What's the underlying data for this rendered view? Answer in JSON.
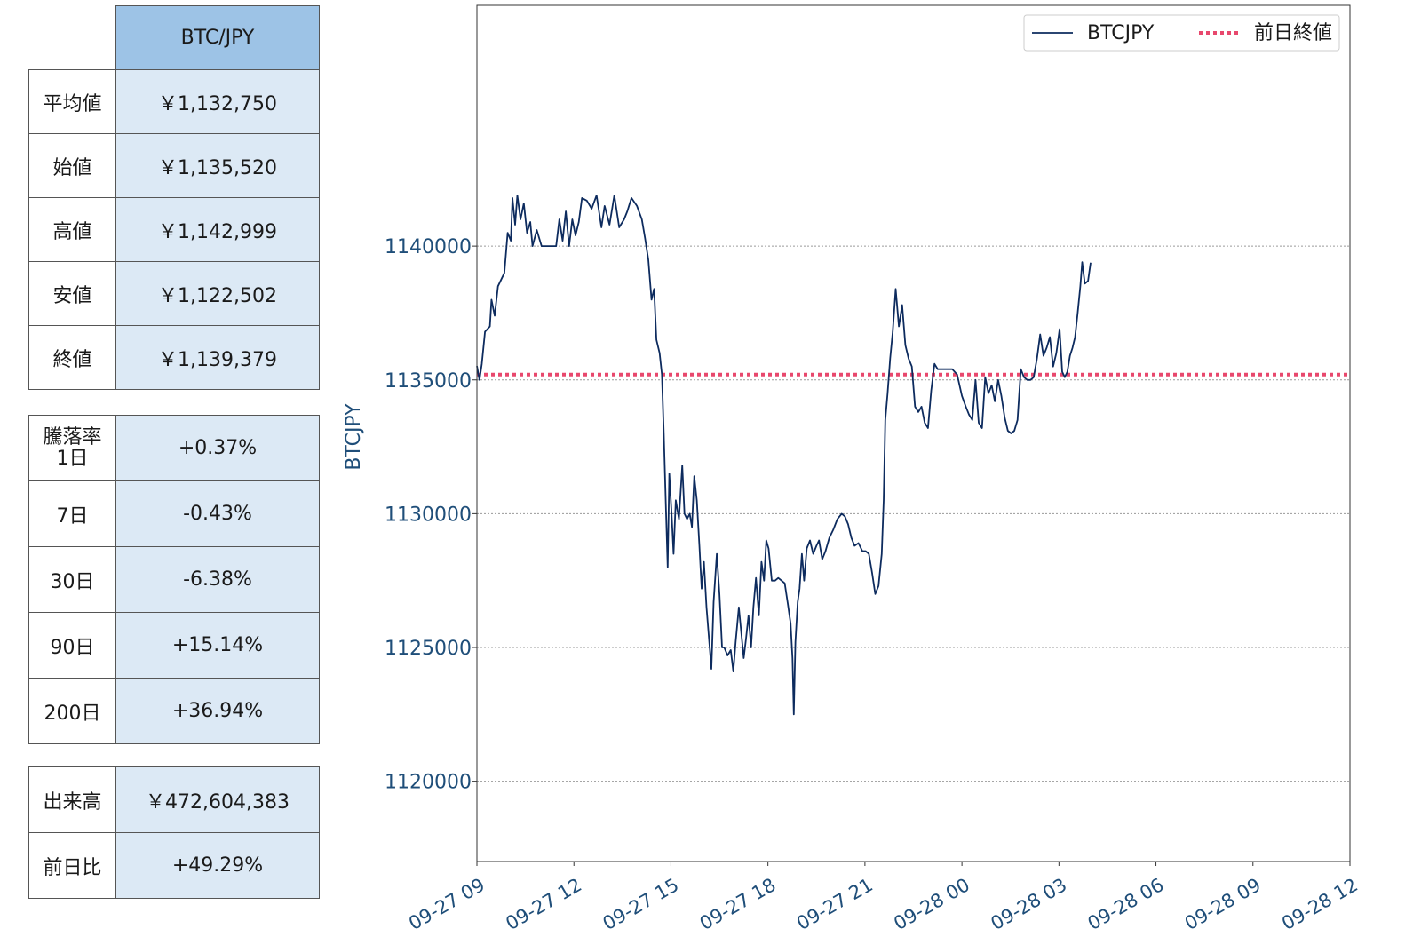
{
  "summary": {
    "pair": "BTC/JPY",
    "rows": [
      {
        "label": "平均値",
        "value": "￥1,132,750"
      },
      {
        "label": "始値",
        "value": "￥1,135,520"
      },
      {
        "label": "高値",
        "value": "￥1,142,999"
      },
      {
        "label": "安値",
        "value": "￥1,122,502"
      },
      {
        "label": "終値",
        "value": "￥1,139,379"
      }
    ]
  },
  "change": {
    "title": "騰落率",
    "rows": [
      {
        "label": "1日",
        "value": "+0.37%"
      },
      {
        "label": "7日",
        "value": "-0.43%"
      },
      {
        "label": "30日",
        "value": "-6.38%"
      },
      {
        "label": "90日",
        "value": "+15.14%"
      },
      {
        "label": "200日",
        "value": "+36.94%"
      }
    ]
  },
  "volume": {
    "rows": [
      {
        "label": "出来高",
        "value": "￥472,604,383"
      },
      {
        "label": "前日比",
        "value": "+49.29%"
      }
    ]
  },
  "colors": {
    "line": "#0d2b5e",
    "prev_close": "#e8486d",
    "axis_text": "#1f4e79",
    "header_cell": "#9dc3e6",
    "value_cell": "#dce9f5"
  },
  "chart_data": {
    "type": "line",
    "ylabel": "BTCJPY",
    "xlabel": "",
    "ylim": [
      1117000,
      1149000
    ],
    "yticks": [
      1120000,
      1125000,
      1130000,
      1135000,
      1140000
    ],
    "xlim": [
      0,
      27
    ],
    "xticks": [
      {
        "t": 0,
        "label": "09-27 09"
      },
      {
        "t": 3,
        "label": "09-27 12"
      },
      {
        "t": 6,
        "label": "09-27 15"
      },
      {
        "t": 9,
        "label": "09-27 18"
      },
      {
        "t": 12,
        "label": "09-27 21"
      },
      {
        "t": 15,
        "label": "09-28 00"
      },
      {
        "t": 18,
        "label": "09-28 03"
      },
      {
        "t": 21,
        "label": "09-28 06"
      },
      {
        "t": 24,
        "label": "09-28 09"
      },
      {
        "t": 27,
        "label": "09-28 12"
      }
    ],
    "grid": "y",
    "legend_position": "top-right",
    "legend": [
      "BTCJPY",
      "前日終値"
    ],
    "prev_close": 1135200,
    "series": [
      {
        "name": "BTCJPY",
        "points": [
          [
            0.0,
            1135520
          ],
          [
            0.08,
            1135000
          ],
          [
            0.15,
            1135600
          ],
          [
            0.25,
            1136800
          ],
          [
            0.4,
            1137000
          ],
          [
            0.45,
            1138000
          ],
          [
            0.55,
            1137400
          ],
          [
            0.65,
            1138500
          ],
          [
            0.85,
            1139000
          ],
          [
            0.95,
            1140500
          ],
          [
            1.05,
            1140200
          ],
          [
            1.1,
            1141800
          ],
          [
            1.18,
            1140800
          ],
          [
            1.25,
            1141900
          ],
          [
            1.35,
            1141000
          ],
          [
            1.45,
            1141600
          ],
          [
            1.55,
            1140500
          ],
          [
            1.65,
            1140900
          ],
          [
            1.72,
            1140000
          ],
          [
            1.85,
            1140600
          ],
          [
            2.0,
            1140000
          ],
          [
            2.2,
            1140000
          ],
          [
            2.45,
            1140000
          ],
          [
            2.55,
            1141000
          ],
          [
            2.65,
            1140200
          ],
          [
            2.75,
            1141300
          ],
          [
            2.85,
            1140000
          ],
          [
            2.95,
            1141000
          ],
          [
            3.05,
            1140400
          ],
          [
            3.15,
            1140900
          ],
          [
            3.25,
            1141800
          ],
          [
            3.4,
            1141700
          ],
          [
            3.55,
            1141400
          ],
          [
            3.7,
            1141900
          ],
          [
            3.85,
            1140700
          ],
          [
            3.95,
            1141500
          ],
          [
            4.1,
            1140800
          ],
          [
            4.25,
            1141900
          ],
          [
            4.4,
            1140700
          ],
          [
            4.55,
            1141000
          ],
          [
            4.65,
            1141300
          ],
          [
            4.78,
            1141800
          ],
          [
            4.95,
            1141500
          ],
          [
            5.1,
            1141000
          ],
          [
            5.2,
            1140300
          ],
          [
            5.3,
            1139500
          ],
          [
            5.4,
            1138000
          ],
          [
            5.48,
            1138400
          ],
          [
            5.55,
            1136500
          ],
          [
            5.65,
            1136000
          ],
          [
            5.72,
            1135200
          ],
          [
            5.78,
            1133000
          ],
          [
            5.85,
            1130000
          ],
          [
            5.9,
            1128000
          ],
          [
            5.95,
            1131500
          ],
          [
            6.02,
            1130000
          ],
          [
            6.08,
            1128500
          ],
          [
            6.15,
            1130500
          ],
          [
            6.25,
            1129800
          ],
          [
            6.35,
            1131800
          ],
          [
            6.42,
            1130000
          ],
          [
            6.5,
            1129800
          ],
          [
            6.58,
            1130000
          ],
          [
            6.65,
            1129500
          ],
          [
            6.72,
            1131400
          ],
          [
            6.8,
            1130500
          ],
          [
            6.88,
            1128800
          ],
          [
            6.95,
            1127200
          ],
          [
            7.02,
            1128200
          ],
          [
            7.1,
            1126500
          ],
          [
            7.2,
            1125000
          ],
          [
            7.25,
            1124200
          ],
          [
            7.32,
            1126700
          ],
          [
            7.42,
            1128500
          ],
          [
            7.5,
            1127000
          ],
          [
            7.58,
            1125000
          ],
          [
            7.65,
            1125000
          ],
          [
            7.75,
            1124700
          ],
          [
            7.85,
            1124900
          ],
          [
            7.93,
            1124100
          ],
          [
            8.0,
            1125200
          ],
          [
            8.1,
            1126500
          ],
          [
            8.18,
            1125500
          ],
          [
            8.25,
            1124600
          ],
          [
            8.32,
            1125300
          ],
          [
            8.4,
            1126200
          ],
          [
            8.48,
            1125000
          ],
          [
            8.55,
            1126500
          ],
          [
            8.63,
            1127600
          ],
          [
            8.72,
            1126200
          ],
          [
            8.8,
            1128200
          ],
          [
            8.88,
            1127500
          ],
          [
            8.95,
            1129000
          ],
          [
            9.02,
            1128700
          ],
          [
            9.12,
            1127500
          ],
          [
            9.22,
            1127500
          ],
          [
            9.32,
            1127600
          ],
          [
            9.42,
            1127500
          ],
          [
            9.52,
            1127400
          ],
          [
            9.62,
            1126600
          ],
          [
            9.7,
            1125900
          ],
          [
            9.76,
            1124600
          ],
          [
            9.8,
            1122502
          ],
          [
            9.85,
            1125200
          ],
          [
            9.92,
            1126700
          ],
          [
            9.98,
            1127200
          ],
          [
            10.05,
            1128500
          ],
          [
            10.12,
            1127500
          ],
          [
            10.2,
            1128700
          ],
          [
            10.3,
            1129000
          ],
          [
            10.4,
            1128500
          ],
          [
            10.5,
            1128800
          ],
          [
            10.58,
            1129000
          ],
          [
            10.68,
            1128300
          ],
          [
            10.78,
            1128600
          ],
          [
            10.9,
            1129100
          ],
          [
            11.02,
            1129400
          ],
          [
            11.15,
            1129800
          ],
          [
            11.28,
            1130000
          ],
          [
            11.38,
            1129900
          ],
          [
            11.48,
            1129600
          ],
          [
            11.58,
            1129100
          ],
          [
            11.68,
            1128800
          ],
          [
            11.8,
            1128900
          ],
          [
            11.92,
            1128600
          ],
          [
            12.02,
            1128600
          ],
          [
            12.12,
            1128500
          ],
          [
            12.22,
            1127800
          ],
          [
            12.32,
            1127000
          ],
          [
            12.42,
            1127300
          ],
          [
            12.52,
            1128500
          ],
          [
            12.58,
            1130500
          ],
          [
            12.63,
            1133500
          ],
          [
            12.7,
            1134500
          ],
          [
            12.78,
            1135800
          ],
          [
            12.86,
            1136800
          ],
          [
            12.95,
            1138400
          ],
          [
            13.05,
            1137000
          ],
          [
            13.15,
            1137800
          ],
          [
            13.25,
            1136300
          ],
          [
            13.35,
            1135800
          ],
          [
            13.45,
            1135500
          ],
          [
            13.55,
            1134000
          ],
          [
            13.65,
            1133800
          ],
          [
            13.75,
            1134000
          ],
          [
            13.85,
            1133400
          ],
          [
            13.95,
            1133200
          ],
          [
            14.05,
            1134600
          ],
          [
            14.15,
            1135600
          ],
          [
            14.25,
            1135400
          ],
          [
            14.4,
            1135400
          ],
          [
            14.55,
            1135400
          ],
          [
            14.7,
            1135400
          ],
          [
            14.85,
            1135200
          ],
          [
            15.0,
            1134400
          ],
          [
            15.12,
            1134000
          ],
          [
            15.22,
            1133700
          ],
          [
            15.32,
            1133500
          ],
          [
            15.42,
            1135000
          ],
          [
            15.52,
            1133400
          ],
          [
            15.62,
            1133200
          ],
          [
            15.72,
            1135100
          ],
          [
            15.82,
            1134500
          ],
          [
            15.92,
            1134800
          ],
          [
            16.02,
            1134200
          ],
          [
            16.12,
            1135000
          ],
          [
            16.22,
            1134400
          ],
          [
            16.32,
            1133600
          ],
          [
            16.42,
            1133100
          ],
          [
            16.52,
            1133000
          ],
          [
            16.62,
            1133100
          ],
          [
            16.72,
            1133500
          ],
          [
            16.82,
            1135400
          ],
          [
            16.92,
            1135100
          ],
          [
            17.02,
            1135000
          ],
          [
            17.12,
            1135000
          ],
          [
            17.22,
            1135100
          ],
          [
            17.32,
            1135800
          ],
          [
            17.42,
            1136700
          ],
          [
            17.52,
            1135900
          ],
          [
            17.62,
            1136200
          ],
          [
            17.72,
            1136600
          ],
          [
            17.82,
            1135500
          ],
          [
            17.92,
            1136000
          ],
          [
            18.02,
            1136900
          ],
          [
            18.1,
            1135300
          ],
          [
            18.18,
            1135100
          ],
          [
            18.26,
            1135300
          ],
          [
            18.34,
            1135900
          ],
          [
            18.42,
            1136200
          ],
          [
            18.5,
            1136600
          ],
          [
            18.58,
            1137500
          ],
          [
            18.66,
            1138500
          ],
          [
            18.72,
            1139400
          ],
          [
            18.8,
            1138600
          ],
          [
            18.9,
            1138700
          ],
          [
            18.98,
            1139379
          ]
        ]
      }
    ]
  }
}
